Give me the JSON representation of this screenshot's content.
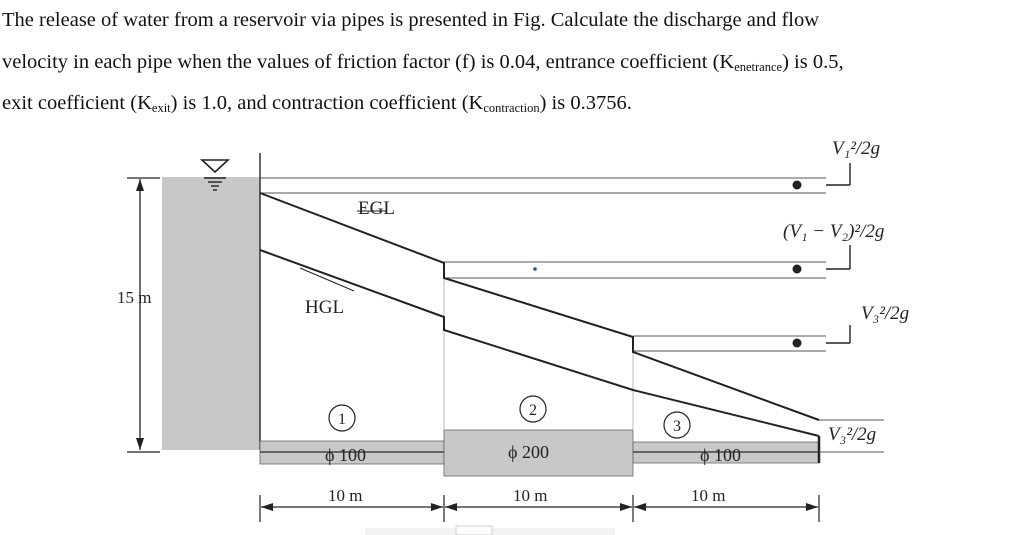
{
  "problem": {
    "line1": "The release of water from a reservoir via pipes is presented in Fig. Calculate the discharge and flow",
    "line2": "velocity in each pipe when the values of friction factor (f) is 0.04, entrance coefficient (K",
    "sub_entrance": "enetrance",
    "line3_a": ") is 0.5,",
    "line3_b": "exit coefficient (K",
    "sub_exit": "exit",
    "line3_c": ") is 1.0, and contraction coefficient (K",
    "sub_contraction": "contraction",
    "line3_d": ") is 0.3756."
  },
  "diagram": {
    "labels": {
      "egl": "EGL",
      "hgl": "HGL",
      "height": "15 m"
    },
    "velocity_heads": {
      "v1": "V₁²/2g",
      "v12": "(V₁ − V₂)²/2g",
      "v3a": "V₃²/2g",
      "v3b": "V₃²/2g"
    },
    "pipes": [
      {
        "number": "1",
        "diameter": "ϕ 100",
        "length": "10 m"
      },
      {
        "number": "2",
        "diameter": "ϕ 200",
        "length": "10 m"
      },
      {
        "number": "3",
        "diameter": "ϕ 100",
        "length": "10 m"
      }
    ],
    "colors": {
      "reservoir": "#c8c8c8",
      "pipe": "#c8c8c8",
      "line": "#222222"
    }
  }
}
